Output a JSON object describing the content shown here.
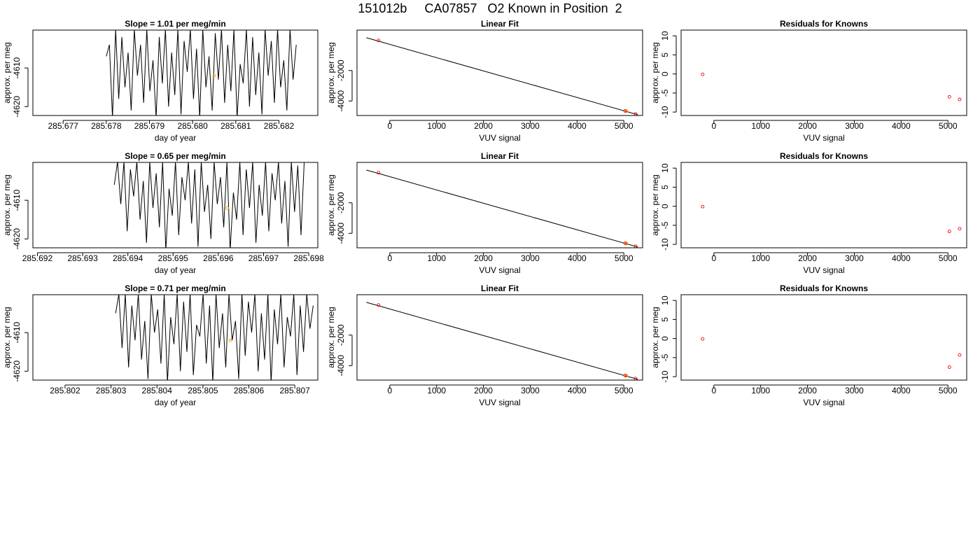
{
  "page_title": "151012b     CA07857   O2 Known in Position  2",
  "colors": {
    "trace": "#000000",
    "known_point": "#ff0000",
    "sample_point": "#ffa500",
    "fit_line": "#000000"
  },
  "chart_data": [
    {
      "type": "line",
      "title": "Slope =  1.01  per meg/min",
      "xlabel": "day of year",
      "ylabel": "approx. per meg",
      "xlim": [
        285.6763,
        285.6829
      ],
      "ylim": [
        -4622.3,
        -4600.2
      ],
      "xticks": [
        "285.677",
        "285.678",
        "285.679",
        "285.680",
        "285.681",
        "285.682"
      ],
      "yticks": [
        "-4610",
        "-4620"
      ],
      "series": [
        {
          "style": "trace",
          "x_range": [
            285.678,
            285.6824
          ],
          "y_range": [
            -4623,
            -4600
          ],
          "values": [
            -4607,
            -4604,
            -4623,
            -4600,
            -4618,
            -4602,
            -4615,
            -4606,
            -4621,
            -4600,
            -4612,
            -4604,
            -4619,
            -4600,
            -4616,
            -4608,
            -4623,
            -4602,
            -4614,
            -4600,
            -4620,
            -4606,
            -4617,
            -4600,
            -4622,
            -4603,
            -4611,
            -4600,
            -4618,
            -4605,
            -4623,
            -4600,
            -4615,
            -4607,
            -4621,
            -4601,
            -4613,
            -4600,
            -4619,
            -4604,
            -4616,
            -4600,
            -4623,
            -4609,
            -4614,
            -4600,
            -4620,
            -4602,
            -4617,
            -4606,
            -4622,
            -4600,
            -4612,
            -4603,
            -4619,
            -4600,
            -4615,
            -4608,
            -4621,
            -4600,
            -4613,
            -4604
          ]
        },
        {
          "style": "sample",
          "x": [
            285.6805
          ],
          "y": [
            -4612
          ]
        }
      ]
    },
    {
      "type": "scatter",
      "title": "Linear Fit",
      "xlabel": "VUV signal",
      "ylabel": "approx. per meg",
      "xlim": [
        -700,
        5400
      ],
      "ylim": [
        -4950,
        650
      ],
      "xticks": [
        0,
        1000,
        2000,
        3000,
        4000,
        5000
      ],
      "yticks": [
        -2000,
        -4000
      ],
      "fit_line": {
        "x": [
          -500,
          5300
        ],
        "y": [
          150,
          -4900
        ]
      },
      "known": {
        "x": [
          -240,
          5030,
          5250
        ],
        "y": [
          -25,
          -4650,
          -4850
        ]
      },
      "sample": {
        "x": [
          5050
        ],
        "y": [
          -4660
        ]
      }
    },
    {
      "type": "scatter",
      "title": "Residuals for Knowns",
      "xlabel": "VUV signal",
      "ylabel": "approx. per meg",
      "xlim": [
        -700,
        5400
      ],
      "ylim": [
        -10.9,
        11.5
      ],
      "xticks": [
        0,
        1000,
        2000,
        3000,
        4000,
        5000
      ],
      "yticks": [
        10,
        5,
        0,
        -5,
        -10
      ],
      "known": {
        "x": [
          -240,
          5030,
          5250
        ],
        "y": [
          -0.1,
          -6.0,
          -6.7
        ]
      }
    },
    {
      "type": "line",
      "title": "Slope =  0.65  per meg/min",
      "xlabel": "day of year",
      "ylabel": "approx. per meg",
      "xlim": [
        285.6919,
        285.6982
      ],
      "ylim": [
        -4622.3,
        -4600.2
      ],
      "xticks": [
        "285.692",
        "285.693",
        "285.694",
        "285.695",
        "285.696",
        "285.697",
        "285.698"
      ],
      "yticks": [
        "-4610",
        "-4620"
      ],
      "series": [
        {
          "style": "trace",
          "x_range": [
            285.6937,
            285.6979
          ],
          "y_range": [
            -4623,
            -4600
          ],
          "values": [
            -4606,
            -4600,
            -4611,
            -4600,
            -4618,
            -4602,
            -4609,
            -4600,
            -4615,
            -4605,
            -4621,
            -4600,
            -4612,
            -4603,
            -4617,
            -4600,
            -4623,
            -4607,
            -4614,
            -4600,
            -4619,
            -4604,
            -4610,
            -4600,
            -4616,
            -4602,
            -4622,
            -4600,
            -4613,
            -4606,
            -4620,
            -4600,
            -4611,
            -4604,
            -4617,
            -4600,
            -4623,
            -4608,
            -4615,
            -4600,
            -4619,
            -4602,
            -4612,
            -4600,
            -4621,
            -4606,
            -4614,
            -4600,
            -4618,
            -4603,
            -4610,
            -4600,
            -4616,
            -4605,
            -4622,
            -4600,
            -4613,
            -4601,
            -4619,
            -4600
          ]
        },
        {
          "style": "sample",
          "x": [
            285.6962
          ],
          "y": [
            -4612
          ]
        }
      ]
    },
    {
      "type": "scatter",
      "title": "Linear Fit",
      "xlabel": "VUV signal",
      "ylabel": "approx. per meg",
      "xlim": [
        -700,
        5400
      ],
      "ylim": [
        -4950,
        650
      ],
      "xticks": [
        0,
        1000,
        2000,
        3000,
        4000,
        5000
      ],
      "yticks": [
        -2000,
        -4000
      ],
      "fit_line": {
        "x": [
          -500,
          5300
        ],
        "y": [
          150,
          -4900
        ]
      },
      "known": {
        "x": [
          -240,
          5030,
          5250
        ],
        "y": [
          -25,
          -4650,
          -4850
        ]
      },
      "sample": {
        "x": [
          5050
        ],
        "y": [
          -4660
        ]
      }
    },
    {
      "type": "scatter",
      "title": "Residuals for Knowns",
      "xlabel": "VUV signal",
      "ylabel": "approx. per meg",
      "xlim": [
        -700,
        5400
      ],
      "ylim": [
        -10.9,
        11.5
      ],
      "xticks": [
        0,
        1000,
        2000,
        3000,
        4000,
        5000
      ],
      "yticks": [
        10,
        5,
        0,
        -5,
        -10
      ],
      "known": {
        "x": [
          -240,
          5030,
          5250
        ],
        "y": [
          -0.1,
          -6.6,
          -5.9
        ]
      }
    },
    {
      "type": "line",
      "title": "Slope =  0.71  per meg/min",
      "xlabel": "day of year",
      "ylabel": "approx. per meg",
      "xlim": [
        285.8013,
        285.8075
      ],
      "ylim": [
        -4622.3,
        -4600.2
      ],
      "xticks": [
        "285.802",
        "285.803",
        "285.804",
        "285.805",
        "285.806",
        "285.807"
      ],
      "yticks": [
        "-4610",
        "-4620"
      ],
      "series": [
        {
          "style": "trace",
          "x_range": [
            285.8031,
            285.8074
          ],
          "y_range": [
            -4623,
            -4600
          ],
          "values": [
            -4605,
            -4600,
            -4614,
            -4600,
            -4619,
            -4603,
            -4612,
            -4600,
            -4617,
            -4607,
            -4622,
            -4600,
            -4610,
            -4604,
            -4618,
            -4600,
            -4623,
            -4606,
            -4613,
            -4600,
            -4620,
            -4602,
            -4615,
            -4600,
            -4621,
            -4608,
            -4611,
            -4600,
            -4618,
            -4603,
            -4623,
            -4600,
            -4614,
            -4605,
            -4619,
            -4600,
            -4612,
            -4607,
            -4622,
            -4600,
            -4616,
            -4602,
            -4610,
            -4600,
            -4620,
            -4605,
            -4617,
            -4600,
            -4623,
            -4604,
            -4613,
            -4600,
            -4619,
            -4606,
            -4611,
            -4600,
            -4621,
            -4603,
            -4615,
            -4600,
            -4609,
            -4603
          ]
        },
        {
          "style": "sample",
          "x": [
            285.8056
          ],
          "y": [
            -4612
          ]
        }
      ]
    },
    {
      "type": "scatter",
      "title": "Linear Fit",
      "xlabel": "VUV signal",
      "ylabel": "approx. per meg",
      "xlim": [
        -700,
        5400
      ],
      "ylim": [
        -4950,
        650
      ],
      "xticks": [
        0,
        1000,
        2000,
        3000,
        4000,
        5000
      ],
      "yticks": [
        -2000,
        -4000
      ],
      "fit_line": {
        "x": [
          -500,
          5300
        ],
        "y": [
          150,
          -4900
        ]
      },
      "known": {
        "x": [
          -240,
          5030,
          5250
        ],
        "y": [
          -25,
          -4650,
          -4850
        ]
      },
      "sample": {
        "x": [
          5050
        ],
        "y": [
          -4660
        ]
      }
    },
    {
      "type": "scatter",
      "title": "Residuals for Knowns",
      "xlabel": "VUV signal",
      "ylabel": "approx. per meg",
      "xlim": [
        -700,
        5400
      ],
      "ylim": [
        -10.9,
        11.5
      ],
      "xticks": [
        0,
        1000,
        2000,
        3000,
        4000,
        5000
      ],
      "yticks": [
        10,
        5,
        0,
        -5,
        -10
      ],
      "known": {
        "x": [
          -240,
          5030,
          5250
        ],
        "y": [
          -0.1,
          -7.5,
          -4.3
        ]
      }
    }
  ]
}
